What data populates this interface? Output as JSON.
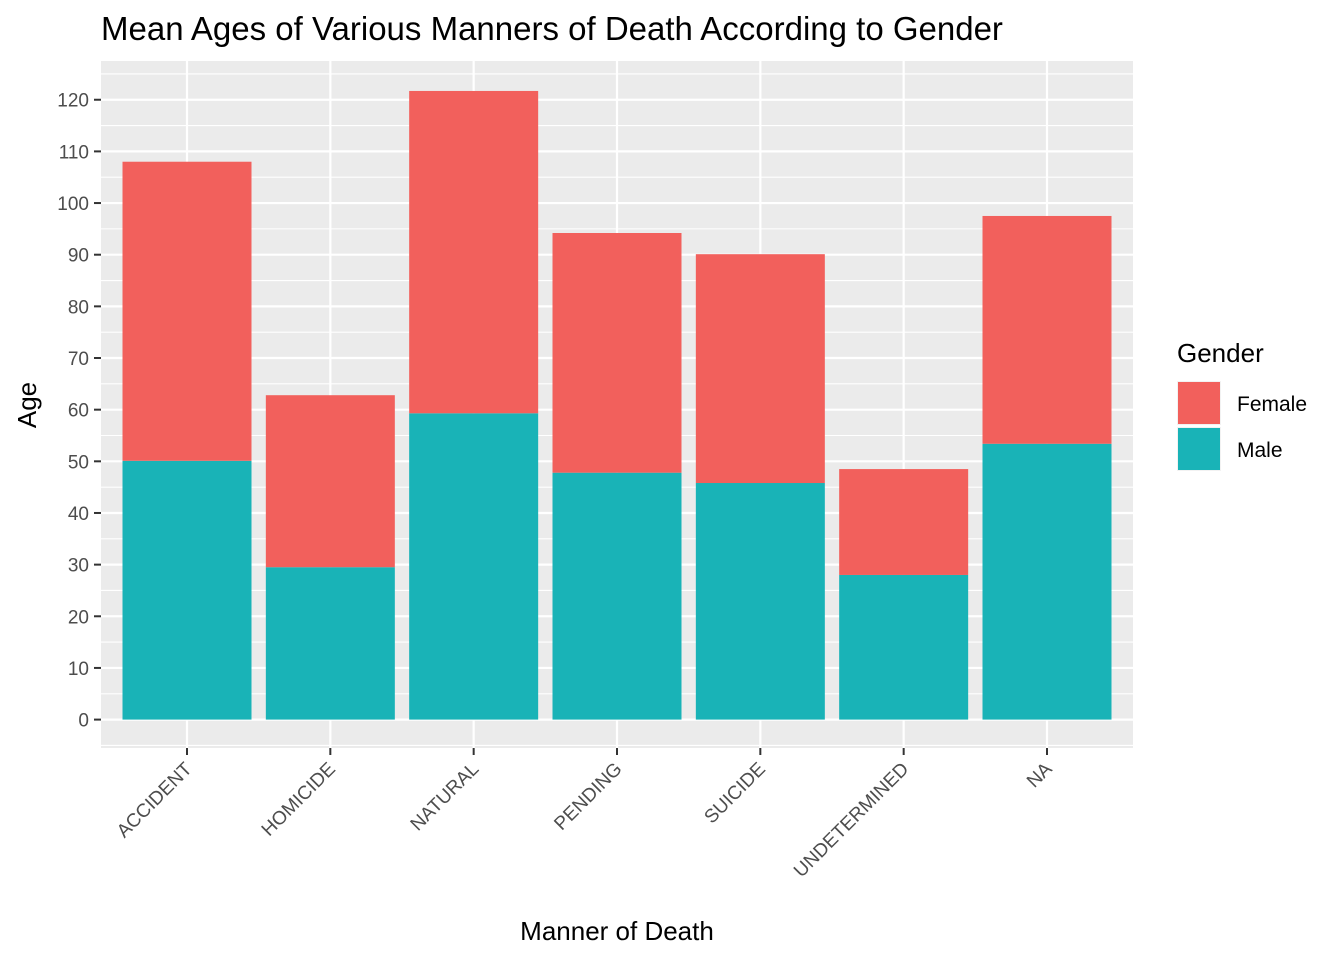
{
  "chart_data": {
    "type": "bar",
    "stacked": true,
    "title": "Mean Ages of Various Manners of Death According to Gender",
    "xlabel": "Manner of Death",
    "ylabel": "Age",
    "categories": [
      "ACCIDENT",
      "HOMICIDE",
      "NATURAL",
      "PENDING",
      "SUICIDE",
      "UNDETERMINED",
      "NA"
    ],
    "series": [
      {
        "name": "Male",
        "values": [
          50.1,
          29.5,
          59.3,
          47.8,
          45.8,
          28.0,
          53.4
        ],
        "color": "#19B3B7"
      },
      {
        "name": "Female",
        "values": [
          57.9,
          33.3,
          62.4,
          46.4,
          44.3,
          20.5,
          44.1
        ],
        "color": "#F2605C"
      }
    ],
    "legend": {
      "title": "Gender",
      "entries": [
        "Female",
        "Male"
      ],
      "position": "right"
    },
    "ylim": [
      -5.5,
      127.5
    ],
    "yticks": [
      0,
      10,
      20,
      30,
      40,
      50,
      60,
      70,
      80,
      90,
      100,
      110,
      120
    ],
    "grid": true,
    "panel_background": "#EBEBEB",
    "x_tick_rotation": -45
  }
}
